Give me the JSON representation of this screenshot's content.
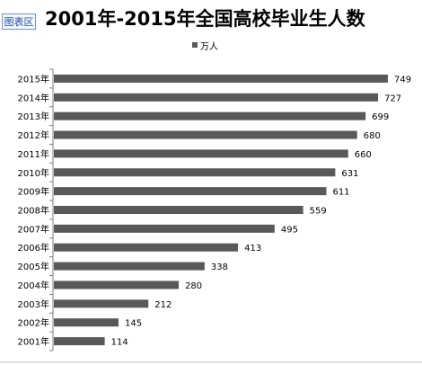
{
  "badge": "图表区",
  "chart_data": {
    "type": "bar",
    "orientation": "horizontal",
    "title": "2001年-2015年全国高校毕业生人数",
    "legend": [
      "万人"
    ],
    "legend_placement": "top-center",
    "categories": [
      "2001年",
      "2002年",
      "2003年",
      "2004年",
      "2005年",
      "2006年",
      "2007年",
      "2008年",
      "2009年",
      "2010年",
      "2011年",
      "2012年",
      "2013年",
      "2014年",
      "2015年"
    ],
    "series": [
      {
        "name": "万人",
        "values": [
          114,
          145,
          212,
          280,
          338,
          413,
          495,
          559,
          611,
          631,
          660,
          680,
          699,
          727,
          749
        ]
      }
    ],
    "grid": false,
    "bar_color": "#595959",
    "data_labels": true
  }
}
